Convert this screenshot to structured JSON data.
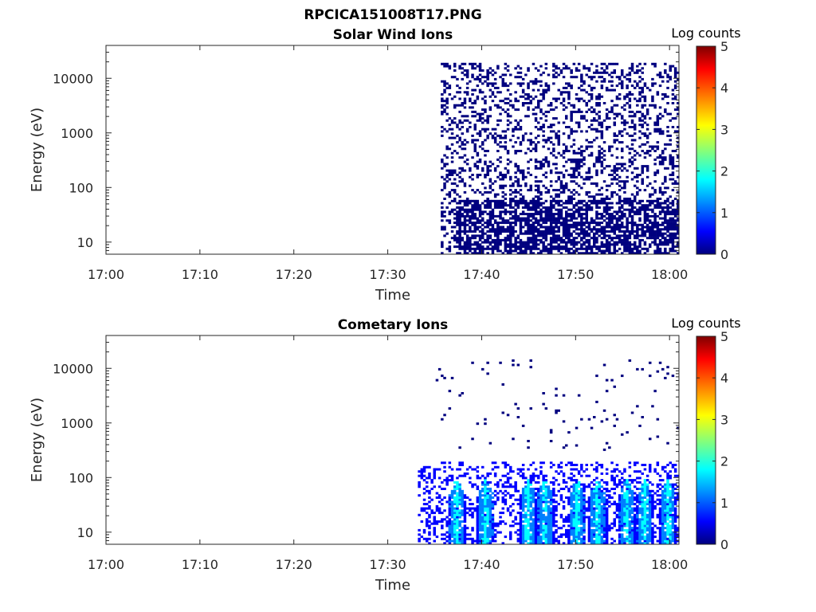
{
  "figure_title": "RPCICA151008T17.PNG",
  "colormap": [
    "#00007f",
    "#0000ff",
    "#007fff",
    "#00ffff",
    "#7fff7f",
    "#ffff00",
    "#ff7f00",
    "#ff0000",
    "#7f0000"
  ],
  "chart_data": [
    {
      "type": "heatmap",
      "title": "Solar Wind Ions",
      "xlabel": "Time",
      "ylabel": "Energy (eV)",
      "x_ticks": [
        "17:00",
        "17:10",
        "17:20",
        "17:30",
        "17:40",
        "17:50",
        "18:00"
      ],
      "xlim_minutes": [
        0,
        61
      ],
      "y_ticks": [
        "10",
        "100",
        "1000",
        "10000"
      ],
      "y_scale": "log",
      "ylim": [
        6,
        40000
      ],
      "colorbar_label": "Log counts",
      "colorbar_ticks": [
        "0",
        "1",
        "2",
        "3",
        "4",
        "5"
      ],
      "colorbar_range": [
        0,
        5
      ],
      "activity_onset": "17:35",
      "description_of_data": "sparse counts mostly log 0 at all energies 10 eV - 30 keV, denser at low energies",
      "regions": [
        {
          "t_start_min": 35.5,
          "t_end_min": 61,
          "e_min": 6,
          "e_max": 20000,
          "density": 0.28,
          "value": 0.1
        },
        {
          "t_start_min": 37,
          "t_end_min": 61,
          "e_min": 6,
          "e_max": 60,
          "density": 0.55,
          "value": 0.2
        }
      ]
    },
    {
      "type": "heatmap",
      "title": "Cometary Ions",
      "xlabel": "Time",
      "ylabel": "Energy (eV)",
      "x_ticks": [
        "17:00",
        "17:10",
        "17:20",
        "17:30",
        "17:40",
        "17:50",
        "18:00"
      ],
      "xlim_minutes": [
        0,
        61
      ],
      "y_ticks": [
        "10",
        "100",
        "1000",
        "10000"
      ],
      "y_scale": "log",
      "ylim": [
        6,
        40000
      ],
      "colorbar_label": "Log counts",
      "colorbar_ticks": [
        "0",
        "1",
        "2",
        "3",
        "4",
        "5"
      ],
      "colorbar_range": [
        0,
        5
      ],
      "activity_onset": "17:33",
      "bursts_minutes": [
        37.2,
        40.3,
        44.8,
        46.6,
        50.0,
        52.2,
        55.3,
        57.2,
        59.7
      ],
      "regions": [
        {
          "t_start_min": 35,
          "t_end_min": 61,
          "e_min": 300,
          "e_max": 15000,
          "density": 0.025,
          "value": 0.1
        },
        {
          "t_start_min": 33,
          "t_end_min": 61,
          "e_min": 6,
          "e_max": 200,
          "density": 0.3,
          "value": 0.5
        }
      ]
    }
  ]
}
